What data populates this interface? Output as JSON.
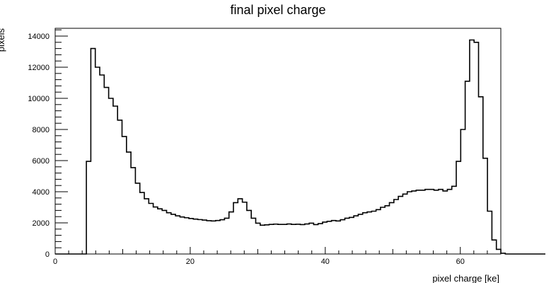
{
  "chart_data": {
    "type": "histogram",
    "title": "final pixel charge",
    "xlabel": "pixel charge [ke]",
    "ylabel": "pixels",
    "xlim": [
      0,
      66
    ],
    "ylim": [
      0,
      14500
    ],
    "xticks": [
      0,
      20,
      40,
      60
    ],
    "yticks": [
      0,
      2000,
      4000,
      6000,
      8000,
      10000,
      12000,
      14000
    ],
    "grid": false,
    "bin_width": 0.66,
    "bin_start": 0,
    "series": [
      {
        "values": [
          0,
          0,
          0,
          0,
          0,
          0,
          0,
          5950,
          13200,
          12000,
          11500,
          10700,
          10000,
          9500,
          8600,
          7550,
          6550,
          5550,
          4550,
          3950,
          3550,
          3250,
          3020,
          2900,
          2800,
          2650,
          2550,
          2450,
          2380,
          2330,
          2280,
          2240,
          2210,
          2180,
          2140,
          2120,
          2150,
          2200,
          2300,
          2700,
          3300,
          3550,
          3330,
          2800,
          2300,
          1980,
          1850,
          1870,
          1900,
          1920,
          1900,
          1900,
          1930,
          1900,
          1910,
          1890,
          1930,
          1980,
          1890,
          1950,
          2050,
          2100,
          2150,
          2120,
          2200,
          2300,
          2350,
          2450,
          2550,
          2650,
          2700,
          2750,
          2850,
          3000,
          3100,
          3300,
          3500,
          3700,
          3850,
          4000,
          4050,
          4100,
          4100,
          4150,
          4150,
          4100,
          4150,
          4050,
          4150,
          4350,
          5950,
          8000,
          11100,
          13750,
          13600,
          10100,
          6150,
          2750,
          900,
          300,
          50,
          0,
          0,
          0,
          0,
          0,
          0,
          0,
          0,
          0
        ]
      }
    ]
  }
}
